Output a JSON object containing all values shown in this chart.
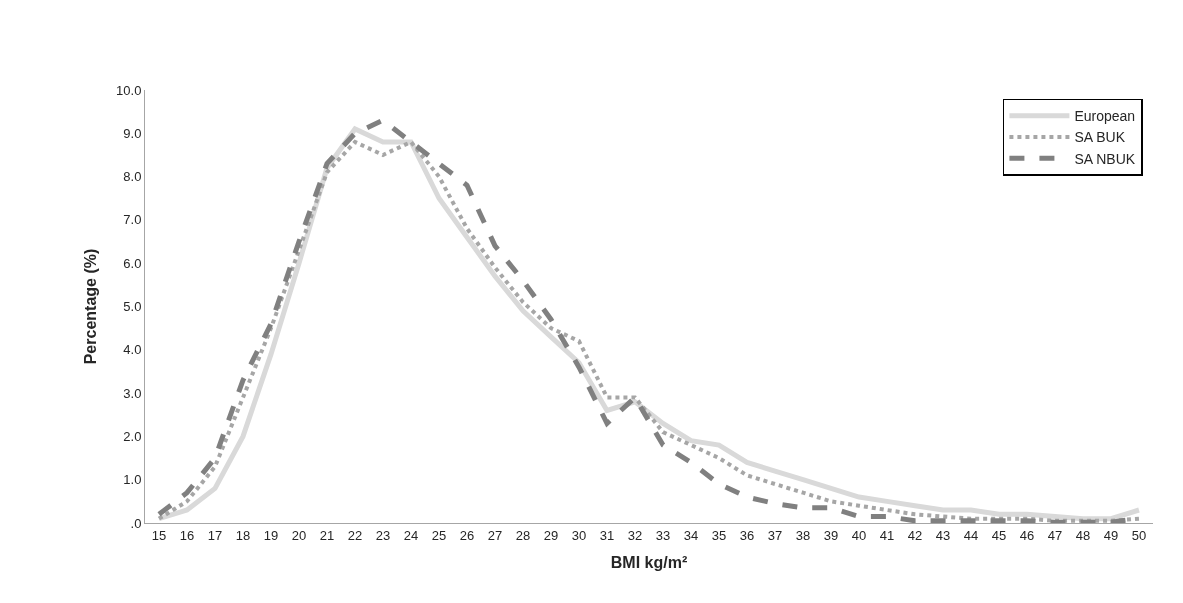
{
  "chart_data": {
    "type": "line",
    "xlabel": "BMI kg/m²",
    "ylabel": "Percentage (%)",
    "categories": [
      "15",
      "16",
      "17",
      "18",
      "19",
      "20",
      "21",
      "22",
      "23",
      "24",
      "25",
      "26",
      "27",
      "28",
      "29",
      "30",
      "31",
      "32",
      "33",
      "34",
      "35",
      "36",
      "37",
      "38",
      "39",
      "40",
      "41",
      "42",
      "43",
      "44",
      "45",
      "46",
      "47",
      "48",
      "49",
      "50"
    ],
    "ylim": [
      0,
      10
    ],
    "yticks": [
      {
        "value": 0,
        "label": ".0"
      },
      {
        "value": 1,
        "label": "1.0"
      },
      {
        "value": 2,
        "label": "2.0"
      },
      {
        "value": 3,
        "label": "3.0"
      },
      {
        "value": 4,
        "label": "4.0"
      },
      {
        "value": 5,
        "label": "5.0"
      },
      {
        "value": 6,
        "label": "6.0"
      },
      {
        "value": 7,
        "label": "7.0"
      },
      {
        "value": 8,
        "label": "8.0"
      },
      {
        "value": 9,
        "label": "9.0"
      },
      {
        "value": 10,
        "label": "10.0"
      }
    ],
    "grid": false,
    "legend": "top right",
    "marker": "none",
    "series": [
      {
        "name": "European",
        "color": "#d9d9d9",
        "line_style": "solid",
        "values": [
          0.1,
          0.3,
          0.8,
          2.0,
          3.9,
          6.0,
          8.2,
          9.1,
          8.8,
          8.8,
          7.5,
          6.6,
          5.7,
          4.9,
          4.3,
          3.7,
          2.6,
          2.8,
          2.3,
          1.9,
          1.8,
          1.4,
          1.2,
          1.0,
          0.8,
          0.6,
          0.5,
          0.4,
          0.3,
          0.3,
          0.2,
          0.2,
          0.15,
          0.1,
          0.1,
          0.3
        ]
      },
      {
        "name": "SA BUK",
        "color": "#a6a6a6",
        "line_style": "dotted",
        "values": [
          0.1,
          0.5,
          1.3,
          2.9,
          4.5,
          6.3,
          8.1,
          8.8,
          8.5,
          8.8,
          8.0,
          6.8,
          5.9,
          5.1,
          4.5,
          4.2,
          2.9,
          2.9,
          2.1,
          1.8,
          1.5,
          1.1,
          0.9,
          0.7,
          0.5,
          0.4,
          0.3,
          0.2,
          0.15,
          0.1,
          0.1,
          0.1,
          0.05,
          0.05,
          0.05,
          0.1
        ]
      },
      {
        "name": "SA NBUK",
        "color": "#808080",
        "line_style": "dashed",
        "values": [
          0.2,
          0.7,
          1.5,
          3.3,
          4.6,
          6.5,
          8.3,
          9.0,
          9.3,
          8.8,
          8.3,
          7.8,
          6.4,
          5.6,
          4.7,
          3.6,
          2.3,
          2.9,
          1.8,
          1.4,
          0.9,
          0.6,
          0.45,
          0.35,
          0.35,
          0.15,
          0.15,
          0.05,
          0.05,
          0.05,
          0.05,
          0.05,
          0.02,
          0.02,
          0.02,
          0.1
        ]
      }
    ]
  }
}
